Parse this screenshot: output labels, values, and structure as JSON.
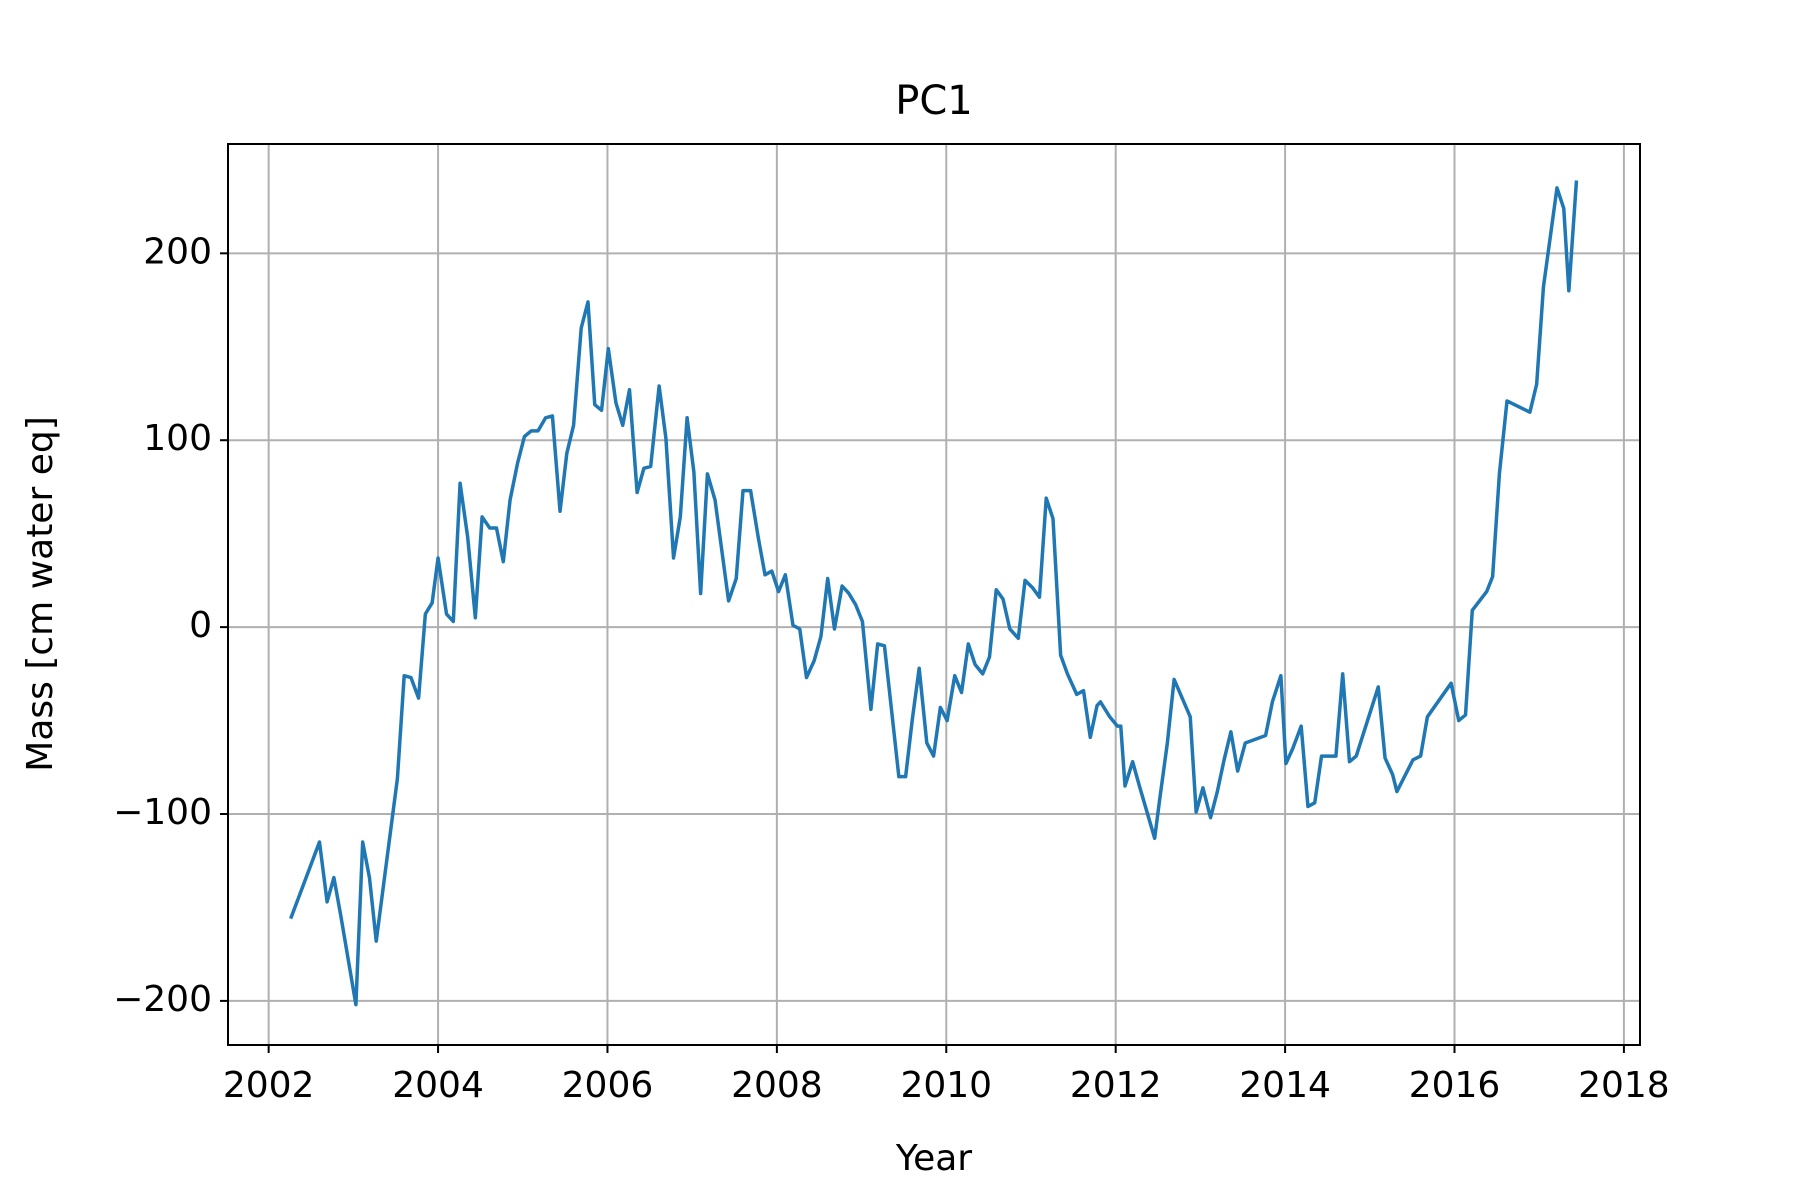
{
  "chart_data": {
    "type": "line",
    "title": "PC1",
    "x_label": "Year",
    "y_label": "Mass [cm water eq]",
    "x": [
      2002.26,
      2002.6,
      2002.69,
      2002.77,
      2002.85,
      2003.03,
      2003.11,
      2003.19,
      2003.27,
      2003.52,
      2003.6,
      2003.68,
      2003.77,
      2003.85,
      2003.93,
      2004.0,
      2004.1,
      2004.18,
      2004.26,
      2004.35,
      2004.44,
      2004.52,
      2004.61,
      2004.69,
      2004.77,
      2004.85,
      2004.94,
      2005.02,
      2005.1,
      2005.18,
      2005.27,
      2005.35,
      2005.44,
      2005.52,
      2005.6,
      2005.69,
      2005.77,
      2005.85,
      2005.93,
      2006.01,
      2006.1,
      2006.18,
      2006.26,
      2006.35,
      2006.43,
      2006.51,
      2006.61,
      2006.69,
      2006.78,
      2006.86,
      2006.94,
      2007.02,
      2007.1,
      2007.18,
      2007.27,
      2007.43,
      2007.52,
      2007.6,
      2007.69,
      2007.78,
      2007.86,
      2007.94,
      2008.02,
      2008.1,
      2008.19,
      2008.27,
      2008.35,
      2008.44,
      2008.52,
      2008.6,
      2008.68,
      2008.77,
      2008.85,
      2008.93,
      2009.01,
      2009.11,
      2009.19,
      2009.27,
      2009.36,
      2009.44,
      2009.52,
      2009.6,
      2009.68,
      2009.77,
      2009.85,
      2009.93,
      2010.01,
      2010.1,
      2010.18,
      2010.26,
      2010.34,
      2010.43,
      2010.51,
      2010.59,
      2010.67,
      2010.75,
      2010.85,
      2010.93,
      2011.02,
      2011.1,
      2011.18,
      2011.26,
      2011.35,
      2011.43,
      2011.54,
      2011.62,
      2011.7,
      2011.78,
      2011.82,
      2011.93,
      2012.02,
      2012.06,
      2012.11,
      2012.2,
      2012.28,
      2012.46,
      2012.52,
      2012.61,
      2012.69,
      2012.88,
      2012.95,
      2013.03,
      2013.12,
      2013.2,
      2013.28,
      2013.36,
      2013.44,
      2013.53,
      2013.77,
      2013.85,
      2013.95,
      2014.01,
      2014.09,
      2014.19,
      2014.27,
      2014.35,
      2014.43,
      2014.6,
      2014.68,
      2014.76,
      2014.84,
      2015.1,
      2015.18,
      2015.27,
      2015.32,
      2015.51,
      2015.6,
      2015.68,
      2015.96,
      2016.05,
      2016.13,
      2016.21,
      2016.38,
      2016.45,
      2016.53,
      2016.62,
      2016.89,
      2016.97,
      2017.05,
      2017.21,
      2017.29,
      2017.35,
      2017.44
    ],
    "series": [
      {
        "name": "PC1",
        "color": "#1f77b4",
        "values": [
          -156,
          -115,
          -147,
          -134,
          -154,
          -202,
          -115,
          -134,
          -168,
          -81,
          -26,
          -27,
          -38,
          7,
          13,
          37,
          7,
          3,
          77,
          48,
          5,
          59,
          53,
          53,
          35,
          68,
          88,
          102,
          105,
          105,
          112,
          113,
          62,
          93,
          108,
          160,
          174,
          119,
          116,
          149,
          120,
          108,
          127,
          72,
          85,
          86,
          129,
          101,
          37,
          59,
          112,
          83,
          18,
          82,
          68,
          14,
          26,
          73,
          73,
          48,
          28,
          30,
          19,
          28,
          1,
          -1,
          -27,
          -18,
          -5,
          26,
          -1,
          22,
          18,
          12,
          3,
          -44,
          -9,
          -10,
          -47,
          -80,
          -80,
          -49,
          -22,
          -62,
          -69,
          -43,
          -50,
          -26,
          -35,
          -9,
          -20,
          -25,
          -16,
          20,
          15,
          -1,
          -6,
          25,
          21,
          16,
          69,
          58,
          -15,
          -25,
          -36,
          -34,
          -59,
          -42,
          -40,
          -48,
          -53,
          -53,
          -85,
          -72,
          -85,
          -113,
          -92,
          -62,
          -28,
          -48,
          -99,
          -86,
          -102,
          -88,
          -71,
          -56,
          -77,
          -62,
          -58,
          -40,
          -26,
          -73,
          -65,
          -53,
          -96,
          -94,
          -69,
          -69,
          -25,
          -72,
          -69,
          -32,
          -70,
          -79,
          -88,
          -71,
          -69,
          -48,
          -30,
          -50,
          -47,
          9,
          19,
          27,
          82,
          121,
          115,
          130,
          182,
          235,
          224,
          180,
          239
        ]
      }
    ],
    "xlim": [
      2001.52,
      2018.19
    ],
    "ylim": [
      -223.6,
      258.5
    ],
    "xticks": [
      2002,
      2004,
      2006,
      2008,
      2010,
      2012,
      2014,
      2016,
      2018
    ],
    "yticks": [
      {
        "value": -200,
        "label": "−200"
      },
      {
        "value": -100,
        "label": "−100"
      },
      0,
      100,
      200
    ],
    "grid": true
  }
}
